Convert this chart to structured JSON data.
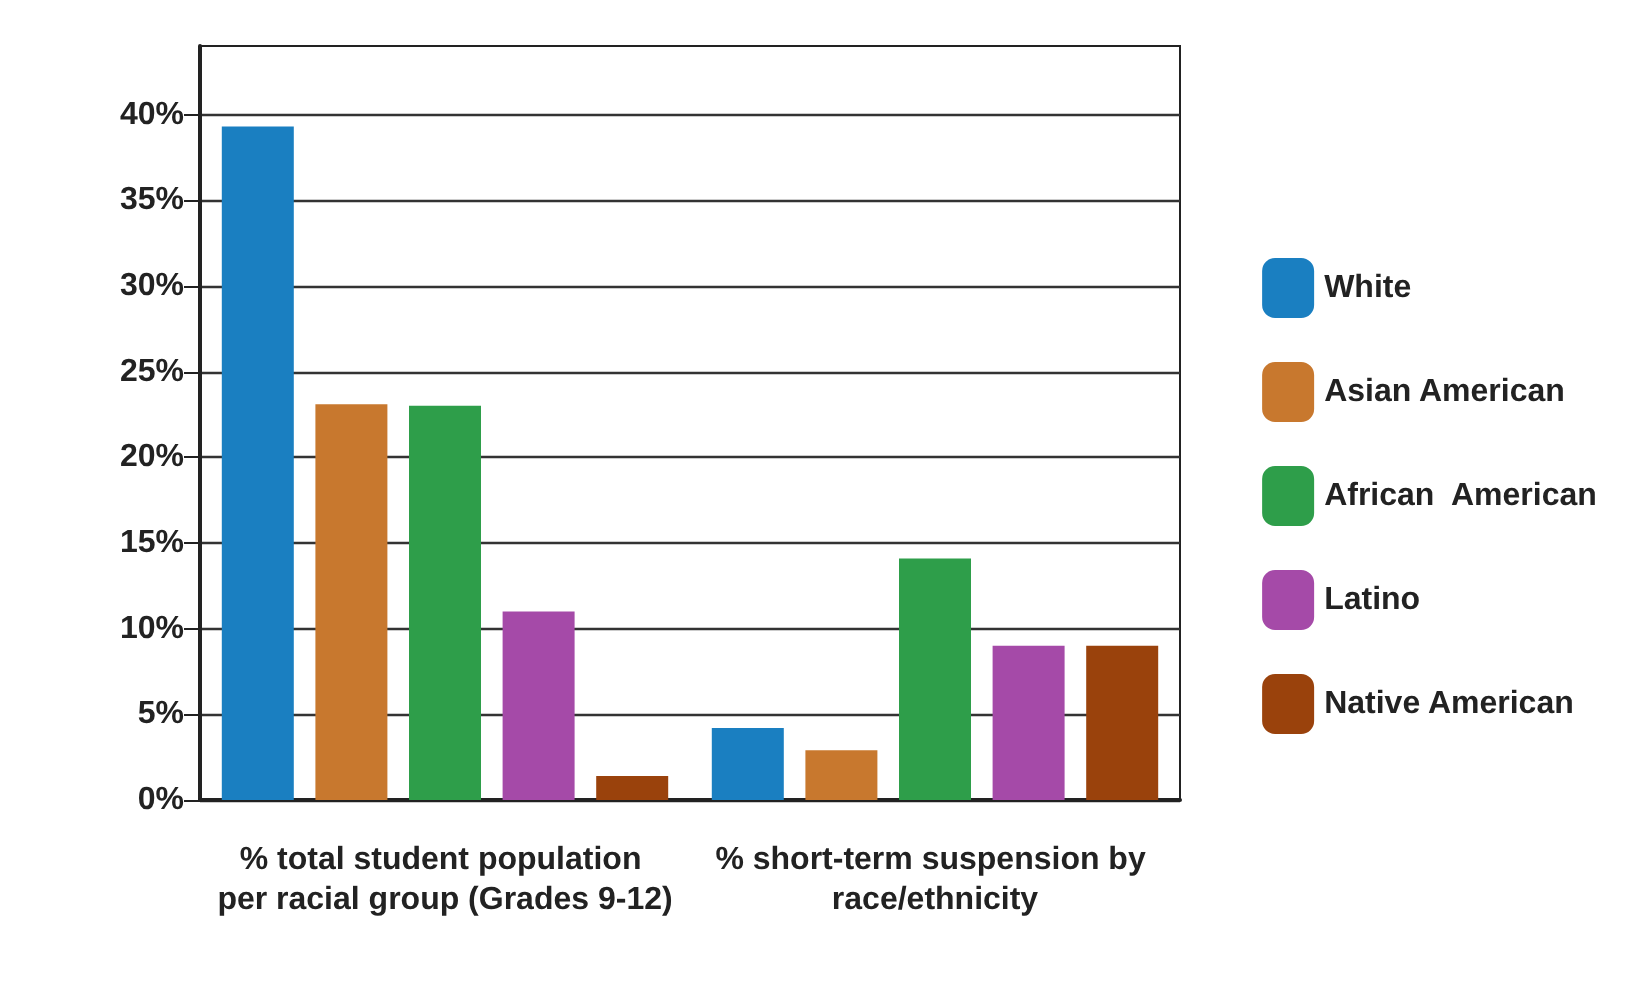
{
  "chart_data": {
    "type": "bar",
    "categories": [
      "% total student population per racial group (Grades 9-12)",
      "% short-term suspension by race/ethnicity"
    ],
    "series": [
      {
        "name": "White",
        "color": "#1a7fc1",
        "values": [
          39.3,
          4.2
        ]
      },
      {
        "name": "Asian American",
        "color": "#c8782e",
        "values": [
          23.1,
          2.9
        ]
      },
      {
        "name": "African  American",
        "color": "#2e9e4a",
        "values": [
          23,
          14.1
        ]
      },
      {
        "name": "Latino",
        "color": "#a54aa8",
        "values": [
          11,
          9
        ]
      },
      {
        "name": "Native American",
        "color": "#9a420c",
        "values": [
          1.4,
          9
        ]
      }
    ],
    "ylim": [
      0,
      44
    ],
    "yticks": [
      {
        "value": 0,
        "label": "0%"
      },
      {
        "value": 5,
        "label": "5%"
      },
      {
        "value": 10,
        "label": "10%"
      },
      {
        "value": 15,
        "label": "15%"
      },
      {
        "value": 20,
        "label": "20%"
      },
      {
        "value": 25,
        "label": "25%"
      },
      {
        "value": 30,
        "label": "30%"
      },
      {
        "value": 35,
        "label": "35%"
      },
      {
        "value": 40,
        "label": "40%"
      }
    ],
    "grid": "y",
    "legend": "right"
  }
}
